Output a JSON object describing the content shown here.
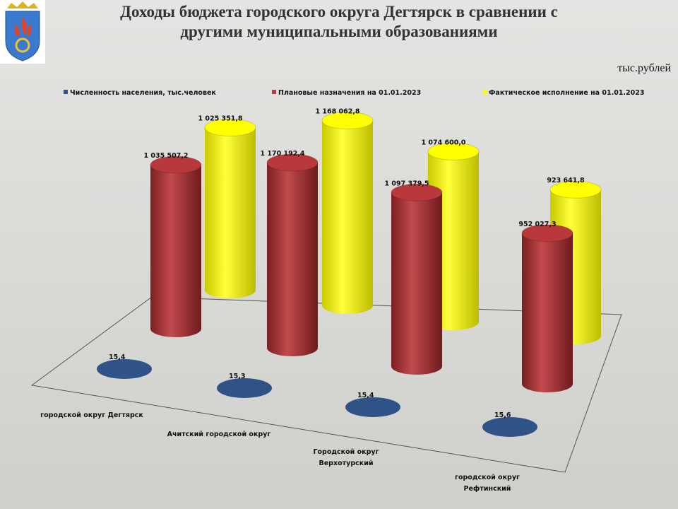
{
  "chart_data": {
    "type": "cylinder3d",
    "title": "Доходы бюджета городского округа Дегтярск в сравнении с другими муниципальными образованиями",
    "unit": "тыс.рублей",
    "categories": [
      "городской округ Дегтярск",
      "Ачитский городской округ",
      "Городской округ Верхотурский",
      "городской округ Рефтинский"
    ],
    "series": [
      {
        "name": "Численность населения, тыс.человек",
        "color": "#2f5387",
        "values": [
          15.4,
          15.3,
          15.4,
          15.6
        ],
        "value_labels": [
          "15,4",
          "15,3",
          "15,4",
          "15,6"
        ]
      },
      {
        "name": "Плановые назначения на 01.01.2023",
        "color": "#b8383c",
        "values": [
          1035507.2,
          1170192.4,
          1097379.5,
          952027.3
        ],
        "value_labels": [
          "1 035 507,2",
          "1 170 192,4",
          "1 097 379,5",
          "952 027,3"
        ]
      },
      {
        "name": "Фактическое исполнение на 01.01.2023",
        "color": "#ffff00",
        "values": [
          1025351.8,
          1168062.8,
          1074600.0,
          923641.8
        ],
        "value_labels": [
          "1 025 351,8",
          "1 168 062,8",
          "1 074 600,0",
          "923 641,8"
        ]
      }
    ]
  }
}
